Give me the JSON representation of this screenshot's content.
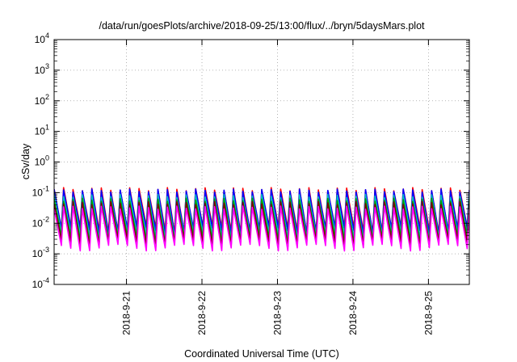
{
  "chart_data": {
    "type": "line",
    "title": "/data/run/goesPlots/archive/2018-09-25/13:00/flux/../bryn/5daysMars.plot",
    "xlabel": "Coordinated Universal Time (UTC)",
    "ylabel": "cSv/day",
    "yscale": "log",
    "ylim": [
      0.0001,
      10000
    ],
    "xlim": [
      "2018-09-20T01:00",
      "2018-09-25T13:00"
    ],
    "grid": true,
    "legend": "none",
    "y_ticks": [
      {
        "value": 0.0001,
        "base": "10",
        "exp": "-4"
      },
      {
        "value": 0.001,
        "base": "10",
        "exp": "-3"
      },
      {
        "value": 0.01,
        "base": "10",
        "exp": "-2"
      },
      {
        "value": 0.1,
        "base": "10",
        "exp": "-1"
      },
      {
        "value": 1,
        "base": "10",
        "exp": "0"
      },
      {
        "value": 10,
        "base": "10",
        "exp": "1"
      },
      {
        "value": 100,
        "base": "10",
        "exp": "2"
      },
      {
        "value": 1000,
        "base": "10",
        "exp": "3"
      },
      {
        "value": 10000,
        "base": "10",
        "exp": "4"
      }
    ],
    "x_ticks": [
      {
        "value": "2018-09-21T00:00",
        "label": "2018-9-21"
      },
      {
        "value": "2018-09-22T00:00",
        "label": "2018-9-22"
      },
      {
        "value": "2018-09-23T00:00",
        "label": "2018-9-23"
      },
      {
        "value": "2018-09-24T00:00",
        "label": "2018-9-24"
      },
      {
        "value": "2018-09-25T00:00",
        "label": "2018-9-25"
      }
    ],
    "series_pattern": {
      "period_hours": 3,
      "first_peak": "2018-09-20T01:00",
      "peak": 0.13,
      "trough_ratio": 0.05
    },
    "series": [
      {
        "color": "#ff0000",
        "level": 1.0
      },
      {
        "color": "#0000ff",
        "level": 0.9
      },
      {
        "color": "#00c0c0",
        "level": 0.6
      },
      {
        "color": "#00a000",
        "level": 0.45
      },
      {
        "color": "#800000",
        "level": 0.35
      },
      {
        "color": "#ff00ff",
        "level": 0.25
      }
    ]
  }
}
